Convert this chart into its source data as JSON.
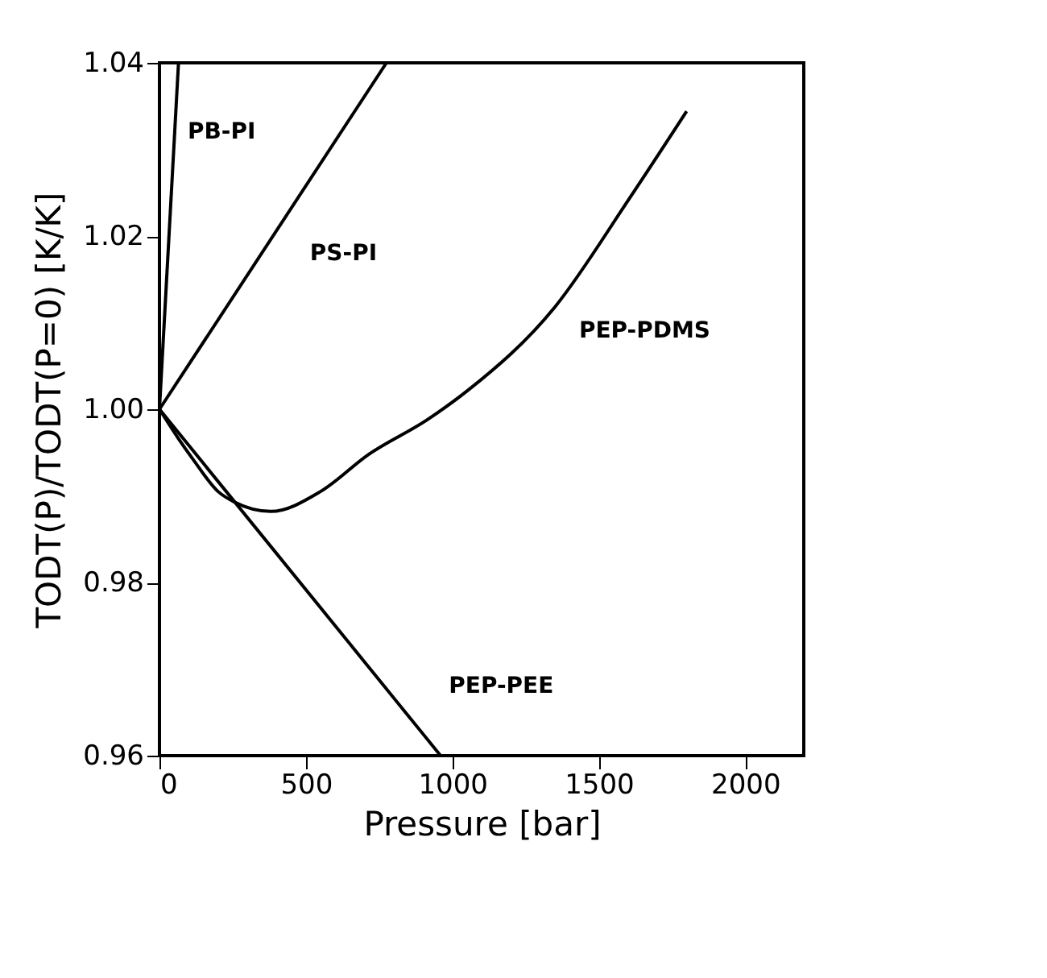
{
  "chart_data": {
    "type": "line",
    "xlabel": "Pressure  [bar]",
    "ylabel": "TODT(P)/TODT(P=0)  [K/K]",
    "xlim": [
      0,
      2200
    ],
    "xticks": [
      0,
      500,
      1000,
      1500,
      2000
    ],
    "ylim": [
      0.96,
      1.04
    ],
    "yticks": [
      {
        "value": 0.96,
        "label": "0.96"
      },
      {
        "value": 0.98,
        "label": "0.98"
      },
      {
        "value": 1.0,
        "label": "1.00"
      },
      {
        "value": 1.02,
        "label": "1.02"
      },
      {
        "value": 1.04,
        "label": "1.04"
      }
    ],
    "grid": false,
    "legend": false,
    "marker": "none",
    "line_style": "solid",
    "series": [
      {
        "name": "PB-PI",
        "color": "#000000",
        "x": [
          0,
          65
        ],
        "values": [
          1.0,
          1.04
        ]
      },
      {
        "name": "PS-PI",
        "color": "#000000",
        "x": [
          0,
          775
        ],
        "values": [
          1.0,
          1.04
        ]
      },
      {
        "name": "PEP-PDMS",
        "color": "#000000",
        "x": [
          0,
          65,
          115,
          200,
          255,
          380,
          550,
          715,
          915,
          1050,
          1350,
          1600,
          1800
        ],
        "values": [
          1.0,
          0.9966,
          0.9942,
          0.9905,
          0.9893,
          0.9882,
          0.9905,
          0.9948,
          0.9988,
          1.0021,
          1.0118,
          1.0241,
          1.0344
        ]
      },
      {
        "name": "PEP-PEE",
        "color": "#000000",
        "x": [
          0,
          960
        ],
        "values": [
          1.0,
          0.96
        ]
      }
    ]
  }
}
